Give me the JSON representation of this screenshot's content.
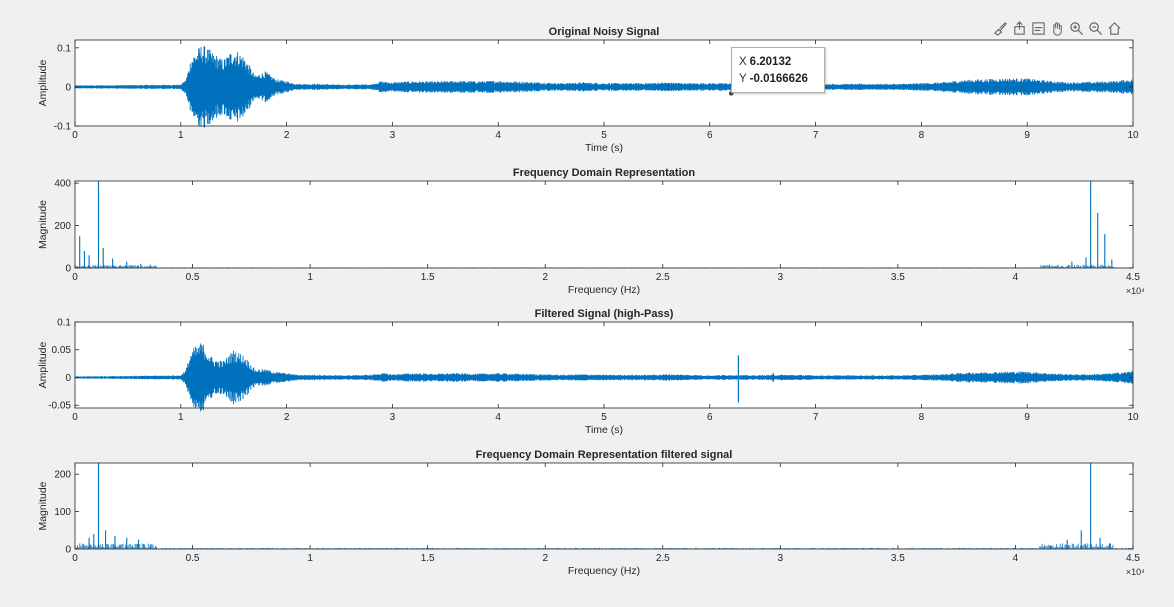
{
  "toolbar": {
    "icons": [
      "brush-icon",
      "export-icon",
      "datatip-icon",
      "pan-icon",
      "zoom-in-icon",
      "zoom-out-icon",
      "home-icon"
    ]
  },
  "datatip": {
    "x_label": "X",
    "x_value": "6.20132",
    "y_label": "Y",
    "y_value": "-0.0166626"
  },
  "colors": {
    "signal": "#0072BD",
    "axes": "#262626",
    "background": "#f0f0f0",
    "plot_bg": "#ffffff"
  },
  "chart_data": [
    {
      "type": "line",
      "title": "Original Noisy Signal",
      "xlabel": "Time (s)",
      "ylabel": "Amplitude",
      "xlim": [
        0,
        10
      ],
      "ylim": [
        -0.1,
        0.12
      ],
      "xticks": [
        0,
        1,
        2,
        3,
        4,
        5,
        6,
        7,
        8,
        9,
        10
      ],
      "xtick_labels": [
        "0",
        "1",
        "2",
        "3",
        "4",
        "5",
        "6",
        "7",
        "8",
        "9",
        "10"
      ],
      "yticks": [
        -0.1,
        0,
        0.1
      ],
      "ytick_labels": [
        "-0.1",
        "0",
        "0.1"
      ],
      "envelope": {
        "x": [
          0,
          0.5,
          1.0,
          1.05,
          1.1,
          1.2,
          1.3,
          1.4,
          1.5,
          1.6,
          1.7,
          1.8,
          1.9,
          2.0,
          2.1,
          2.3,
          2.5,
          2.8,
          2.9,
          3.0,
          3.2,
          3.4,
          3.6,
          3.8,
          4.0,
          4.2,
          4.4,
          4.6,
          4.8,
          5.0,
          5.2,
          5.4,
          5.6,
          5.8,
          6.0,
          6.2,
          6.4,
          6.6,
          6.8,
          7.0,
          7.2,
          7.4,
          7.6,
          7.8,
          8.0,
          8.2,
          8.4,
          8.6,
          8.8,
          9.0,
          9.2,
          9.4,
          9.6,
          9.8,
          10.0
        ],
        "amp": [
          0.004,
          0.005,
          0.006,
          0.02,
          0.08,
          0.11,
          0.09,
          0.07,
          0.1,
          0.08,
          0.03,
          0.04,
          0.02,
          0.015,
          0.008,
          0.008,
          0.006,
          0.007,
          0.015,
          0.012,
          0.015,
          0.014,
          0.016,
          0.015,
          0.016,
          0.014,
          0.012,
          0.01,
          0.012,
          0.01,
          0.01,
          0.01,
          0.012,
          0.01,
          0.01,
          0.01,
          0.006,
          0.01,
          0.009,
          0.008,
          0.008,
          0.008,
          0.008,
          0.008,
          0.01,
          0.012,
          0.018,
          0.02,
          0.022,
          0.022,
          0.016,
          0.012,
          0.013,
          0.015,
          0.02
        ]
      },
      "datatip_point": {
        "x": 6.20132,
        "y": -0.0166626
      }
    },
    {
      "type": "line",
      "title": "Frequency Domain Representation",
      "xlabel": "Frequency (Hz)",
      "ylabel": "Magnitude",
      "xlim": [
        0,
        45000
      ],
      "ylim": [
        0,
        410
      ],
      "xticks": [
        0,
        5000,
        10000,
        15000,
        20000,
        25000,
        30000,
        35000,
        40000,
        45000
      ],
      "xtick_labels": [
        "0",
        "0.5",
        "1",
        "1.5",
        "2",
        "2.5",
        "3",
        "3.5",
        "4",
        "4.5"
      ],
      "x_exponent": "×10⁴",
      "yticks": [
        0,
        200,
        400
      ],
      "ytick_labels": [
        "0",
        "200",
        "400"
      ],
      "spikes": [
        {
          "x": 200,
          "y": 150
        },
        {
          "x": 400,
          "y": 80
        },
        {
          "x": 600,
          "y": 60
        },
        {
          "x": 1000,
          "y": 410
        },
        {
          "x": 1200,
          "y": 95
        },
        {
          "x": 1600,
          "y": 45
        },
        {
          "x": 2200,
          "y": 30
        },
        {
          "x": 2800,
          "y": 20
        },
        {
          "x": 3200,
          "y": 15
        },
        {
          "x": 41800,
          "y": 15
        },
        {
          "x": 42400,
          "y": 30
        },
        {
          "x": 43000,
          "y": 50
        },
        {
          "x": 43200,
          "y": 410
        },
        {
          "x": 43500,
          "y": 260
        },
        {
          "x": 43800,
          "y": 160
        },
        {
          "x": 44100,
          "y": 40
        }
      ]
    },
    {
      "type": "line",
      "title": "Filtered Signal (high-Pass)",
      "xlabel": "Time (s)",
      "ylabel": "Amplitude",
      "xlim": [
        0,
        10
      ],
      "ylim": [
        -0.055,
        0.1
      ],
      "xticks": [
        0,
        1,
        2,
        3,
        4,
        5,
        6,
        7,
        8,
        9,
        10
      ],
      "xtick_labels": [
        "0",
        "1",
        "2",
        "3",
        "4",
        "5",
        "6",
        "7",
        "8",
        "9",
        "10"
      ],
      "yticks": [
        -0.05,
        0,
        0.05,
        0.1
      ],
      "ytick_labels": [
        "-0.05",
        "0",
        "0.05",
        "0.1"
      ],
      "envelope": {
        "x": [
          0,
          0.5,
          1.0,
          1.05,
          1.1,
          1.2,
          1.3,
          1.4,
          1.5,
          1.6,
          1.7,
          1.8,
          1.9,
          2.0,
          2.1,
          2.3,
          2.5,
          2.8,
          2.9,
          3.0,
          3.2,
          3.4,
          3.6,
          3.8,
          4.0,
          4.2,
          4.4,
          4.6,
          4.8,
          5.0,
          5.2,
          5.4,
          5.6,
          5.8,
          6.0,
          6.2,
          6.4,
          6.6,
          6.8,
          7.0,
          7.2,
          7.4,
          7.6,
          7.8,
          8.0,
          8.2,
          8.4,
          8.6,
          8.8,
          9.0,
          9.2,
          9.4,
          9.6,
          9.8,
          10.0
        ],
        "amp": [
          0.002,
          0.003,
          0.004,
          0.015,
          0.05,
          0.065,
          0.035,
          0.03,
          0.05,
          0.04,
          0.015,
          0.015,
          0.01,
          0.008,
          0.005,
          0.005,
          0.004,
          0.005,
          0.008,
          0.006,
          0.008,
          0.007,
          0.008,
          0.007,
          0.008,
          0.007,
          0.006,
          0.005,
          0.006,
          0.005,
          0.005,
          0.005,
          0.006,
          0.005,
          0.004,
          0.005,
          0.004,
          0.005,
          0.005,
          0.004,
          0.004,
          0.004,
          0.004,
          0.004,
          0.005,
          0.006,
          0.009,
          0.01,
          0.011,
          0.011,
          0.008,
          0.006,
          0.006,
          0.008,
          0.012
        ]
      },
      "spikes": [
        {
          "x": 6.27,
          "y": 0.04,
          "ymin": -0.045
        },
        {
          "x": 6.6,
          "y": 0.008,
          "ymin": -0.008
        }
      ]
    },
    {
      "type": "line",
      "title": "Frequency Domain Representation filtered signal",
      "xlabel": "Frequency (Hz)",
      "ylabel": "Magnitude",
      "xlim": [
        0,
        45000
      ],
      "ylim": [
        0,
        230
      ],
      "xticks": [
        0,
        5000,
        10000,
        15000,
        20000,
        25000,
        30000,
        35000,
        40000,
        45000
      ],
      "xtick_labels": [
        "0",
        "0.5",
        "1",
        "1.5",
        "2",
        "2.5",
        "3",
        "3.5",
        "4",
        "4.5"
      ],
      "x_exponent": "×10⁴",
      "yticks": [
        0,
        100,
        200
      ],
      "ytick_labels": [
        "0",
        "100",
        "200"
      ],
      "spikes": [
        {
          "x": 600,
          "y": 30
        },
        {
          "x": 800,
          "y": 40
        },
        {
          "x": 1000,
          "y": 230
        },
        {
          "x": 1300,
          "y": 50
        },
        {
          "x": 1700,
          "y": 35
        },
        {
          "x": 2200,
          "y": 30
        },
        {
          "x": 2700,
          "y": 25
        },
        {
          "x": 3200,
          "y": 12
        },
        {
          "x": 41500,
          "y": 10
        },
        {
          "x": 42200,
          "y": 25
        },
        {
          "x": 42800,
          "y": 50
        },
        {
          "x": 43200,
          "y": 230
        },
        {
          "x": 43600,
          "y": 30
        },
        {
          "x": 44000,
          "y": 15
        }
      ]
    }
  ]
}
